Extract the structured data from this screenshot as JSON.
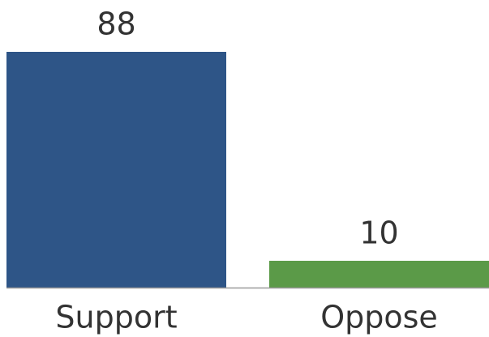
{
  "chart_data": {
    "type": "bar",
    "categories": [
      "Support",
      "Oppose"
    ],
    "values": [
      88,
      10
    ],
    "colors": [
      "#2e5587",
      "#5b9a48"
    ]
  }
}
